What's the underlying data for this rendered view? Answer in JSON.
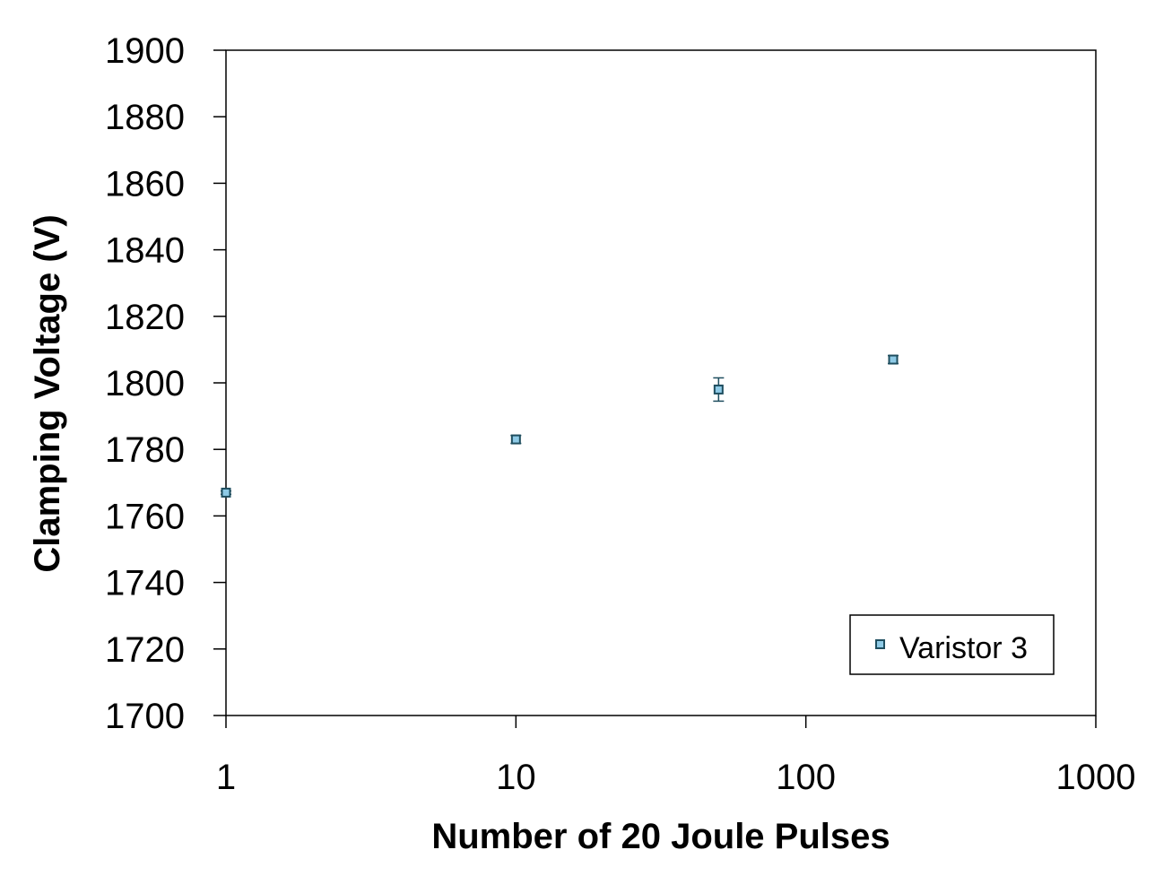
{
  "chart_data": {
    "type": "scatter",
    "xlabel": "Number of 20 Joule Pulses",
    "ylabel": "Clamping Voltage (V)",
    "x_scale": "log",
    "xlim": [
      1,
      1000
    ],
    "ylim": [
      1700,
      1900
    ],
    "x_ticks": [
      1,
      10,
      100,
      1000
    ],
    "x_tick_labels": [
      "1",
      "10",
      "100",
      "1000"
    ],
    "y_ticks": [
      1700,
      1720,
      1740,
      1760,
      1780,
      1800,
      1820,
      1840,
      1860,
      1880,
      1900
    ],
    "y_tick_labels": [
      "1700",
      "1720",
      "1740",
      "1760",
      "1780",
      "1800",
      "1820",
      "1840",
      "1860",
      "1880",
      "1900"
    ],
    "grid": false,
    "legend": {
      "position": "bottom-right",
      "entries": [
        "Varistor 3"
      ]
    },
    "series": [
      {
        "name": "Varistor 3",
        "color": "#8ecae6",
        "edge_color": "#1f4e5f",
        "marker": "square",
        "points": [
          {
            "x": 1,
            "y": 1767,
            "err": 0.5
          },
          {
            "x": 10,
            "y": 1783,
            "err": 1.2
          },
          {
            "x": 50,
            "y": 1798,
            "err": 3.5
          },
          {
            "x": 200,
            "y": 1807,
            "err": 1.2
          }
        ]
      }
    ]
  }
}
